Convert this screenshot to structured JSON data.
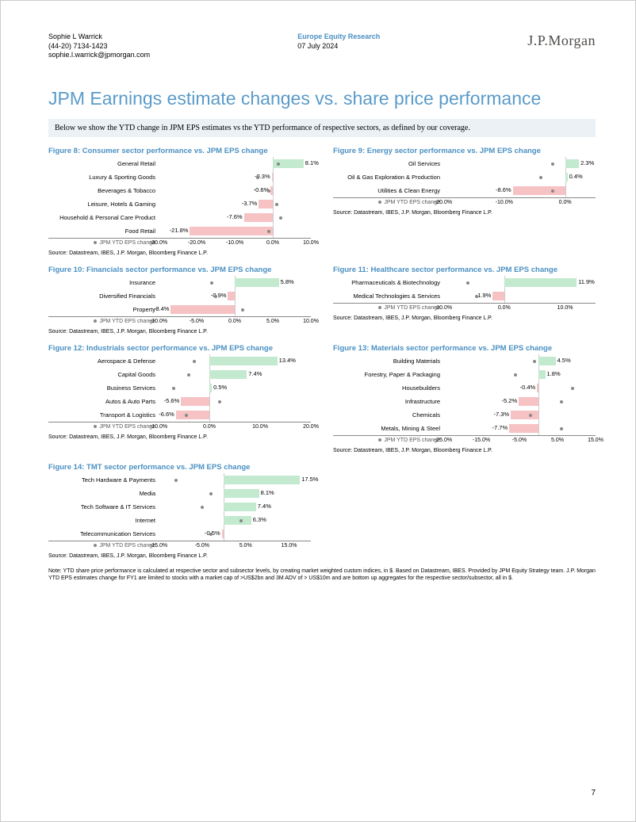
{
  "header": {
    "author_name": "Sophie L Warrick",
    "author_phone": "(44-20) 7134-1423",
    "author_email": "sophie.l.warrick@jpmorgan.com",
    "research_title": "Europe Equity Research",
    "research_date": "07 July 2024",
    "logo_text": "J.P.Morgan"
  },
  "title": "JPM Earnings estimate changes vs. share price performance",
  "intro": "Below we show the YTD change in JPM EPS estimates vs the YTD performance of respective sectors, as defined by our coverage.",
  "legend_text": "JPM YTD EPS change",
  "source_text": "Source: Datastream, IBES, J.P. Morgan, Bloomberg Finance L.P.",
  "note": "Note: YTD share price performance is calculated at respective sector and subsector levels, by creating market weighted custom indices, in $. Based on Datastream, IBES. Provided by JPM Equity Strategy team. J.P. Morgan YTD EPS estimates change for FY1 are limited to stocks with a market cap of >US$2bn and 3M ADV of > US$10m and are bottom up aggregates for the respective sector/subsector, all in $.",
  "page_num": "7",
  "colors": {
    "pos": "#c3e9cf",
    "neg": "#f6c2c3",
    "dot": "#888888",
    "title": "#4a90c2",
    "intro_bg": "#ecf1f5"
  },
  "charts": [
    {
      "id": "fig8",
      "title": "Figure 8: Consumer sector performance vs. JPM EPS change",
      "xmin": -30,
      "xmax": 10,
      "ticks": [
        -30,
        -20,
        -10,
        0,
        10
      ],
      "rows": [
        {
          "label": "General Retail",
          "value": 8.1,
          "dot": 1.5
        },
        {
          "label": "Luxury & Sporting Goods",
          "value": -0.3,
          "dot": -4.0
        },
        {
          "label": "Beverages & Tobacco",
          "value": -0.6,
          "dot": -1.0
        },
        {
          "label": "Leisure, Hotels & Gaming",
          "value": -3.7,
          "dot": 1.0
        },
        {
          "label": "Household & Personal Care Product",
          "value": -7.6,
          "dot": 2.0
        },
        {
          "label": "Food Retail",
          "value": -21.8,
          "dot": -1.0
        }
      ]
    },
    {
      "id": "fig9",
      "title": "Figure 9: Energy sector performance vs. JPM EPS change",
      "xmin": -20,
      "xmax": 5,
      "ticks": [
        -20,
        -10,
        0
      ],
      "rows": [
        {
          "label": "Oil Services",
          "value": 2.3,
          "dot": -2.0
        },
        {
          "label": "Oil & Gas Exploration & Production",
          "value": 0.4,
          "dot": -4.0
        },
        {
          "label": "Utilities & Clean Energy",
          "value": -8.6,
          "dot": -2.0
        }
      ]
    },
    {
      "id": "fig10",
      "title": "Figure 10: Financials sector performance vs. JPM EPS change",
      "xmin": -10,
      "xmax": 10,
      "ticks": [
        -10,
        -5,
        0,
        5,
        10
      ],
      "rows": [
        {
          "label": "Insurance",
          "value": 5.8,
          "dot": -3.0
        },
        {
          "label": "Diversified Financials",
          "value": -0.9,
          "dot": -2.5
        },
        {
          "label": "Property",
          "value": -8.4,
          "dot": 1.0
        }
      ]
    },
    {
      "id": "fig11",
      "title": "Figure 11: Healthcare sector performance vs. JPM EPS change",
      "xmin": -10,
      "xmax": 15,
      "ticks": [
        -10,
        0,
        10
      ],
      "rows": [
        {
          "label": "Pharmaceuticals & Biotechnology",
          "value": 11.9,
          "dot": -6.0
        },
        {
          "label": "Medical Technologies & Services",
          "value": -1.9,
          "dot": -4.5
        }
      ]
    },
    {
      "id": "fig12",
      "title": "Figure 12: Industrials sector performance vs. JPM EPS change",
      "xmin": -10,
      "xmax": 20,
      "ticks": [
        -10,
        0,
        10,
        20
      ],
      "rows": [
        {
          "label": "Aerospace & Defense",
          "value": 13.4,
          "dot": -3.0
        },
        {
          "label": "Capital Goods",
          "value": 7.4,
          "dot": -4.0
        },
        {
          "label": "Business Services",
          "value": 0.5,
          "dot": -7.0
        },
        {
          "label": "Autos & Auto Parts",
          "value": -5.6,
          "dot": 2.0
        },
        {
          "label": "Transport & Logistics",
          "value": -6.6,
          "dot": -4.5
        }
      ]
    },
    {
      "id": "fig13",
      "title": "Figure 13: Materials sector performance vs. JPM EPS change",
      "xmin": -25,
      "xmax": 15,
      "ticks": [
        -25,
        -15,
        -5,
        5,
        15
      ],
      "rows": [
        {
          "label": "Building Materials",
          "value": 4.5,
          "dot": -1.0
        },
        {
          "label": "Forestry, Paper & Packaging",
          "value": 1.8,
          "dot": -6.0
        },
        {
          "label": "Housebuilders",
          "value": -0.4,
          "dot": 9.0
        },
        {
          "label": "Infrastructure",
          "value": -5.2,
          "dot": 6.0
        },
        {
          "label": "Chemicals",
          "value": -7.3,
          "dot": -2.0
        },
        {
          "label": "Metals, Mining & Steel",
          "value": -7.7,
          "dot": 6.0
        }
      ]
    },
    {
      "id": "fig14",
      "title": "Figure 14: TMT sector performance vs. JPM EPS change",
      "xmin": -15,
      "xmax": 20,
      "ticks": [
        -15,
        -5,
        5,
        15
      ],
      "rows": [
        {
          "label": "Tech Hardware & Payments",
          "value": 17.5,
          "dot": -11.0
        },
        {
          "label": "Media",
          "value": 8.1,
          "dot": -3.0
        },
        {
          "label": "Tech Software & IT Services",
          "value": 7.4,
          "dot": -5.0
        },
        {
          "label": "Internet",
          "value": 6.3,
          "dot": 4.0
        },
        {
          "label": "Telecommunication Services",
          "value": -0.5,
          "dot": -3.0
        }
      ]
    }
  ]
}
